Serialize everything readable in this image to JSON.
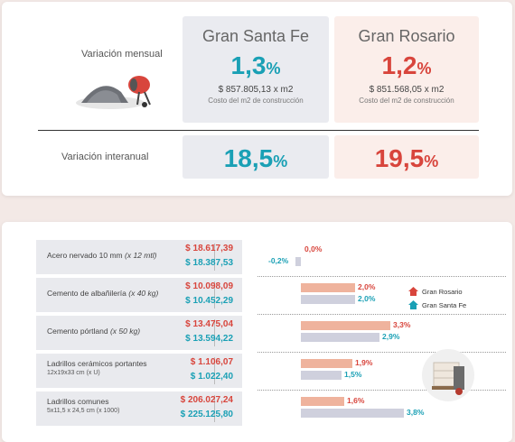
{
  "top": {
    "monthly_label": "Variación mensual",
    "annual_label": "Variación interanual",
    "santa_fe": {
      "title": "Gran Santa Fe",
      "monthly": "1,3",
      "annual": "18,5",
      "price": "$ 857.805,13 x m2",
      "price_caption": "Costo del m2 de construcción"
    },
    "rosario": {
      "title": "Gran Rosario",
      "monthly": "1,2",
      "annual": "19,5",
      "price": "$ 851.568,05 x m2",
      "price_caption": "Costo del m2 de construcción"
    },
    "pct_sign": "%"
  },
  "legend": {
    "rosario": "Gran Rosario",
    "santa_fe": "Gran Santa Fe"
  },
  "colors": {
    "rosario": "#d8453c",
    "santa_fe": "#1aa0b5",
    "bar_rosario": "#efb39d",
    "bar_santa_fe": "#cfd0dd"
  },
  "materials": [
    {
      "name": "Acero nervado 10 mm",
      "qualifier": "(x 12 mtl)",
      "dims": "",
      "rosario_price": "$ 18.617,39",
      "santa_fe_price": "$ 18.387,53"
    },
    {
      "name": "Cemento de albañilería",
      "qualifier": "(x 40 kg)",
      "dims": "",
      "rosario_price": "$ 10.098,09",
      "santa_fe_price": "$ 10.452,29"
    },
    {
      "name": "Cemento pórtland",
      "qualifier": "(x 50 kg)",
      "dims": "",
      "rosario_price": "$ 13.475,04",
      "santa_fe_price": "$ 13.594,22"
    },
    {
      "name": "Ladrillos cerámicos portantes",
      "qualifier": "",
      "dims": "12x19x33 cm (x U)",
      "rosario_price": "$ 1.106,07",
      "santa_fe_price": "$ 1.022,40"
    },
    {
      "name": "Ladrillos comunes",
      "qualifier": "",
      "dims": "5x11,5 x 24,5 cm (x 1000)",
      "rosario_price": "$ 206.027,24",
      "santa_fe_price": "$ 225.125,80"
    }
  ],
  "chart_data": {
    "type": "bar",
    "categories": [
      "Acero nervado 10 mm",
      "Cemento de albañilería",
      "Cemento pórtland",
      "Ladrillos cerámicos portantes",
      "Ladrillos comunes"
    ],
    "series": [
      {
        "name": "Gran Rosario",
        "values": [
          0.0,
          2.0,
          3.3,
          1.9,
          1.6
        ],
        "labels": [
          "0,0%",
          "2,0%",
          "3,3%",
          "1,9%",
          "1,6%"
        ]
      },
      {
        "name": "Gran Santa Fe",
        "values": [
          -0.2,
          2.0,
          2.9,
          1.5,
          3.8
        ],
        "labels": [
          "-0,2%",
          "2,0%",
          "2,9%",
          "1,5%",
          "3,8%"
        ]
      }
    ]
  }
}
